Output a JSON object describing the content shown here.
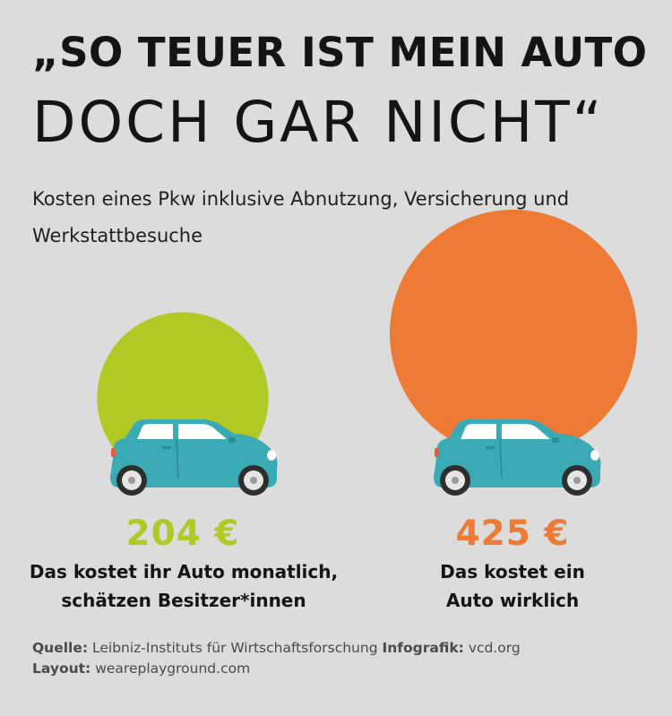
{
  "headline": {
    "line1": "„SO TEUER IST MEIN AUTO",
    "line2": "DOCH GAR NICHT“"
  },
  "subtitle": "Kosten eines Pkw inklusive Abnutzung, Versicherung und Werkstattbesuche",
  "colors": {
    "background": "#dcdcdc",
    "estimate": "#b2c825",
    "actual": "#ee7b35",
    "car_body": "#3aabb4"
  },
  "chart_data": {
    "type": "bubble",
    "unit": "€",
    "series": [
      {
        "value": 204,
        "value_label": "204 €",
        "label_lines": [
          "Das kostet ihr Auto monatlich,",
          "schätzen Besitzer*innen"
        ],
        "color": "#b2c825"
      },
      {
        "value": 425,
        "value_label": "425 €",
        "label_lines": [
          "Das kostet ein",
          "Auto wirklich"
        ],
        "color": "#ee7b35"
      }
    ]
  },
  "footer": {
    "source_label": "Quelle:",
    "source_text": "Leibniz-Instituts für Wirtschaftsforschung",
    "graphic_label": "Infografik:",
    "graphic_text": "vcd.org",
    "layout_label": "Layout:",
    "layout_text": "weareplayground.com"
  }
}
